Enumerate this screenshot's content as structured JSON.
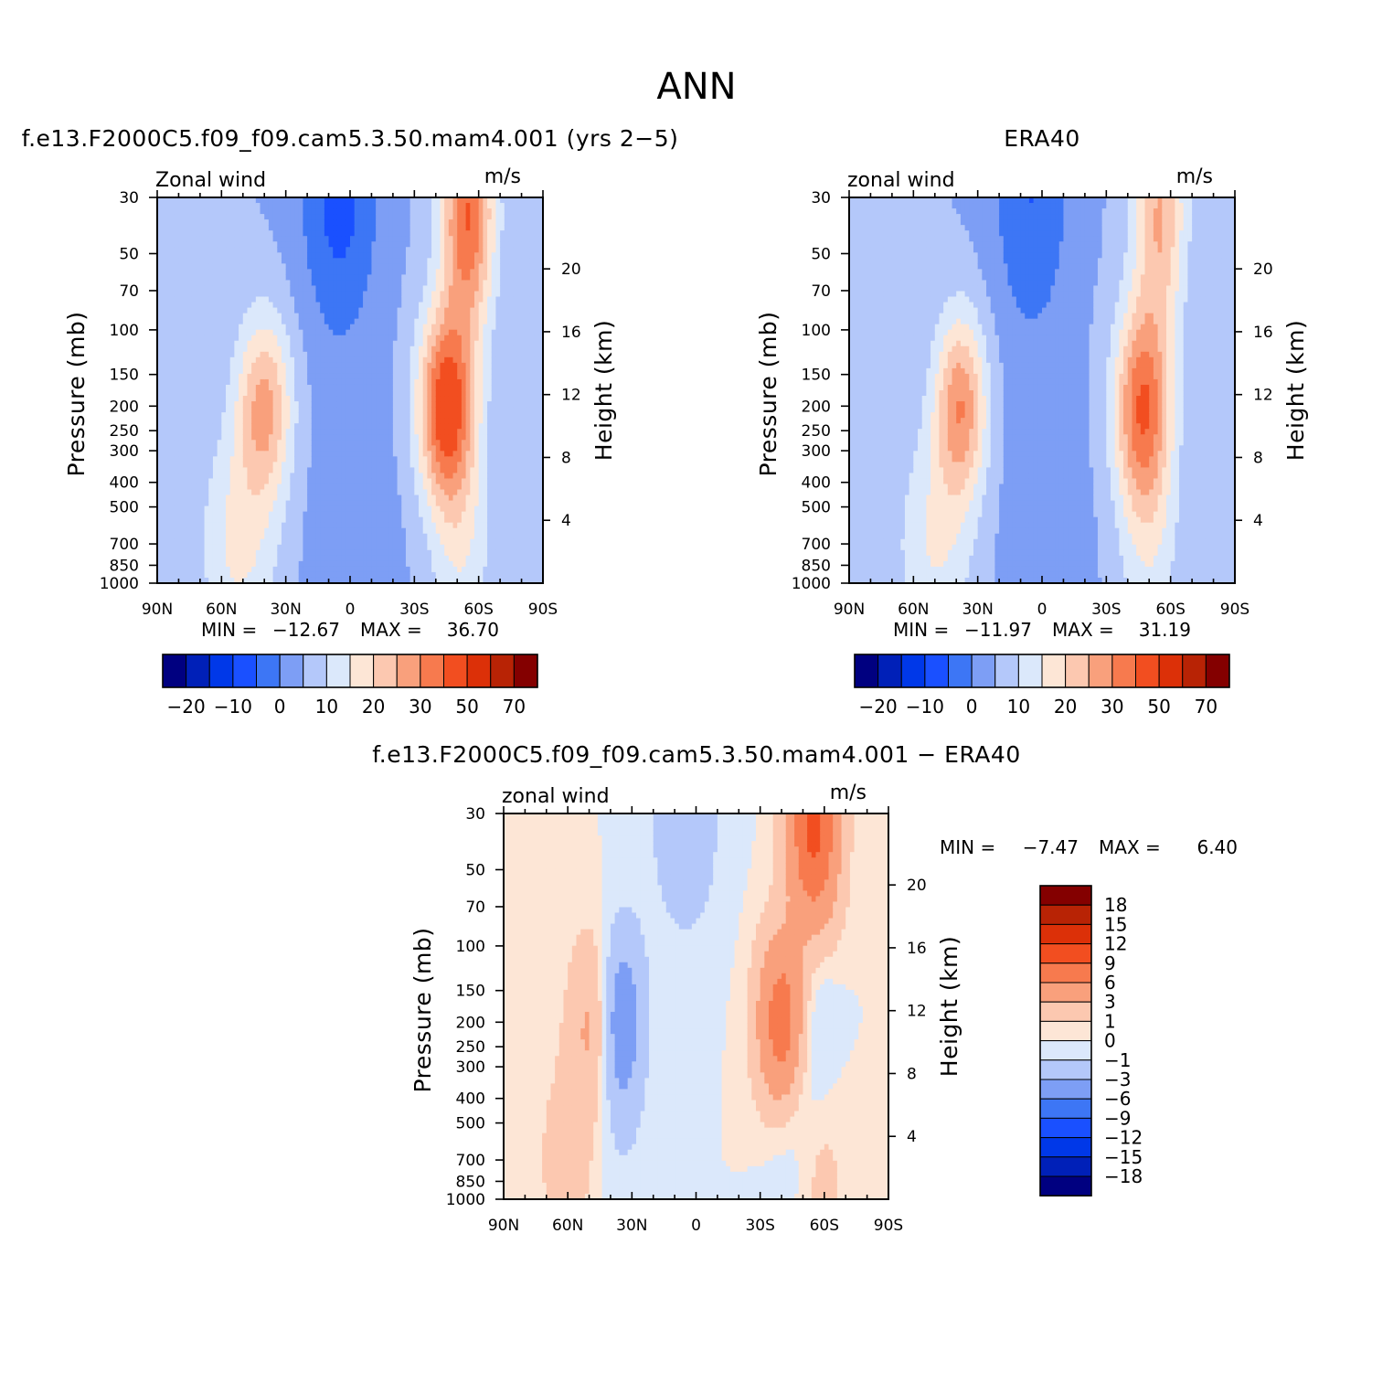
{
  "chart_data": {
    "type": "heatmap",
    "title": "ANN",
    "x_tick_labels": [
      "90N",
      "60N",
      "30N",
      "0",
      "30S",
      "60S",
      "90S"
    ],
    "x_tick_values": [
      90,
      60,
      30,
      0,
      -30,
      -60,
      -90
    ],
    "y_tick_labels": [
      "30",
      "50",
      "70",
      "100",
      "150",
      "200",
      "250",
      "300",
      "400",
      "500",
      "700",
      "850",
      "1000"
    ],
    "y_tick_values": [
      30,
      50,
      70,
      100,
      150,
      200,
      250,
      300,
      400,
      500,
      700,
      850,
      1000
    ],
    "y_scale": "log",
    "right_axis_label": "Height (km)",
    "right_tick_labels": [
      "20",
      "16",
      "12",
      "8",
      "4"
    ],
    "right_tick_values": [
      20,
      16,
      12,
      8,
      4
    ],
    "ylabel": "Pressure (mb)",
    "panels": [
      {
        "title": "f.e13.F2000C5.f09_f09.cam5.3.50.mam4.001 (yrs 2−5)",
        "variable": "Zonal wind",
        "units": "m/s",
        "min_label": "MIN =",
        "min_value": "−12.67",
        "max_label": "MAX =",
        "max_value": "36.70",
        "min": -12.67,
        "max": 36.7,
        "colorbar": {
          "orientation": "horizontal",
          "labels": [
            "−20",
            "−10",
            "0",
            "10",
            "20",
            "30",
            "50",
            "70"
          ],
          "label_values": [
            -20,
            -10,
            0,
            10,
            20,
            30,
            50,
            70
          ]
        }
      },
      {
        "title": "ERA40",
        "variable": "zonal wind",
        "units": "m/s",
        "min_label": "MIN =",
        "min_value": "−11.97",
        "max_label": "MAX =",
        "max_value": "31.19",
        "min": -11.97,
        "max": 31.19,
        "colorbar": {
          "orientation": "horizontal",
          "labels": [
            "−20",
            "−10",
            "0",
            "10",
            "20",
            "30",
            "50",
            "70"
          ],
          "label_values": [
            -20,
            -10,
            0,
            10,
            20,
            30,
            50,
            70
          ]
        }
      },
      {
        "title": "f.e13.F2000C5.f09_f09.cam5.3.50.mam4.001 − ERA40",
        "variable": "zonal wind",
        "units": "m/s",
        "min_label": "MIN =",
        "min_value": "−7.47",
        "max_label": "MAX =",
        "max_value": "6.40",
        "min": -7.47,
        "max": 6.4,
        "colorbar": {
          "orientation": "vertical",
          "labels": [
            "18",
            "15",
            "12",
            "9",
            "6",
            "3",
            "1",
            "0",
            "−1",
            "−3",
            "−6",
            "−9",
            "−12",
            "−15",
            "−18"
          ],
          "label_values": [
            18,
            15,
            12,
            9,
            6,
            3,
            1,
            0,
            -1,
            -3,
            -6,
            -9,
            -12,
            -15,
            -18
          ]
        }
      }
    ],
    "colormap": [
      "#000080",
      "#0020b8",
      "#0038e8",
      "#1a50ff",
      "#3d76f5",
      "#7d9ef5",
      "#b4c8fa",
      "#dbe8fb",
      "#fde6d6",
      "#fcc8b0",
      "#f9a07c",
      "#f77a4e",
      "#f24e20",
      "#dc3008",
      "#b82305",
      "#840000"
    ]
  }
}
